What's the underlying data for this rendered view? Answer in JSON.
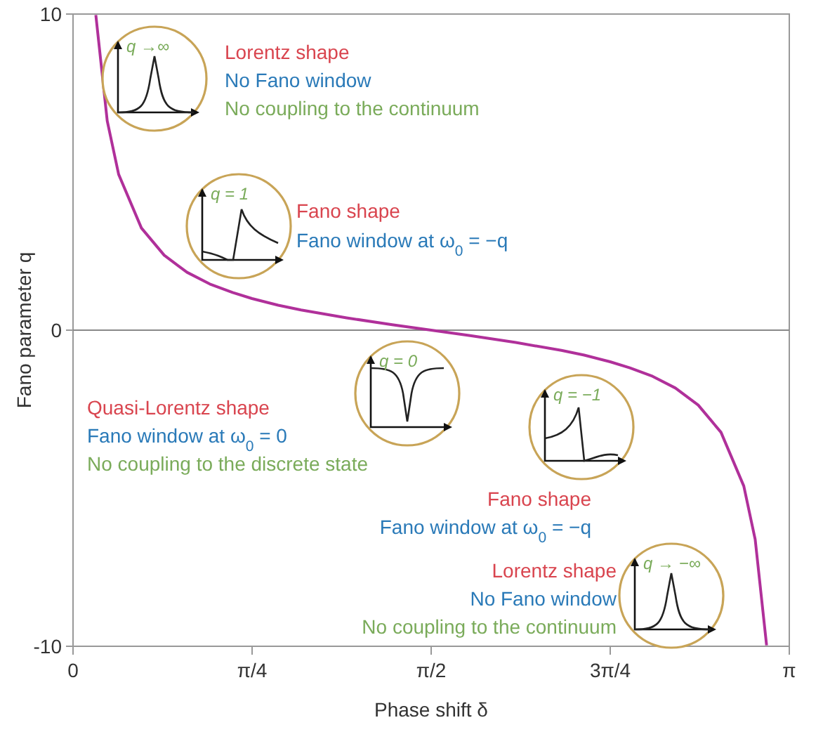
{
  "chart_data": {
    "type": "line",
    "xlabel": "Phase shift δ",
    "ylabel": "Fano parameter q",
    "x": [
      0.1,
      0.15,
      0.2,
      0.3,
      0.4,
      0.5,
      0.6,
      0.7,
      0.785,
      0.9,
      1.0,
      1.2,
      1.4,
      1.571,
      1.742,
      1.942,
      2.142,
      2.242,
      2.356,
      2.442,
      2.542,
      2.642,
      2.742,
      2.842,
      2.942,
      2.992,
      3.042
    ],
    "series": [
      {
        "color": "#b0309a",
        "values": [
          9.97,
          6.62,
          4.93,
          3.23,
          2.37,
          1.83,
          1.46,
          1.19,
          1.0,
          0.79,
          0.64,
          0.39,
          0.17,
          0,
          -0.17,
          -0.39,
          -0.64,
          -0.79,
          -1.0,
          -1.19,
          -1.46,
          -1.83,
          -2.37,
          -3.23,
          -4.93,
          -6.62,
          -9.97
        ]
      }
    ],
    "xlim": [
      0,
      3.1416
    ],
    "xticks": [
      0,
      {
        "value": 0.7854,
        "label": "π/4"
      },
      {
        "value": 1.5708,
        "label": "π/2"
      },
      {
        "value": 2.3562,
        "label": "3π/4"
      },
      {
        "value": 3.1416,
        "label": "π"
      }
    ],
    "ylim": [
      -10,
      10
    ],
    "yticks": [
      -10,
      0,
      10
    ],
    "ref_lines": [
      {
        "axis": "y",
        "value": 0,
        "color": "#888888"
      }
    ],
    "grid": false,
    "annotations": [
      "q →∞",
      "Lorentz shape",
      "No Fano window",
      "No coupling to the continuum",
      "q = 1",
      "Fano shape",
      "Fano window at ω$_{0}$ = −q",
      "q = 0",
      "Quasi-Lorentz shape",
      "Fano window at ω$_{0}$ = 0",
      "No coupling to the discrete state",
      "q = −1",
      "Fano shape",
      "Fano window at ω$_{0}$ = −q",
      "Lorentz shape",
      "No Fano window",
      "No coupling to the continuum",
      "q → −∞"
    ]
  }
}
